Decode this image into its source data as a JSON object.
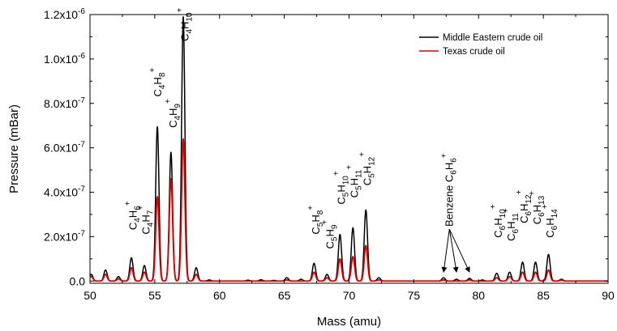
{
  "chart_data": {
    "type": "line",
    "xlabel": "Mass (amu)",
    "ylabel": "Pressure (mBar)",
    "xlim": [
      50,
      90
    ],
    "ylim": [
      -1e-08,
      1.2e-06
    ],
    "x_ticks": [
      50,
      55,
      60,
      65,
      70,
      75,
      80,
      85,
      90
    ],
    "x_tick_labels": [
      "50",
      "55",
      "60",
      "65",
      "70",
      "75",
      "80",
      "85",
      "90"
    ],
    "y_ticks": [
      0,
      2e-07,
      4e-07,
      6e-07,
      8e-07,
      1e-06,
      1.2e-06
    ],
    "y_tick_labels": [
      "0.0",
      "2.0x10",
      "4.0x10",
      "6.0x10",
      "8.0x10",
      "1.0x10",
      "1.2x10"
    ],
    "y_tick_exponents": [
      "",
      "-7",
      "-7",
      "-7",
      "-7",
      "-6",
      "-6"
    ],
    "grid": false,
    "legend_position": "top-right",
    "peak_width_amu": 0.18,
    "series": [
      {
        "name": "Middle Eastern crude oil",
        "color": "#000000",
        "peaks": [
          {
            "x": 50.1,
            "y": 3e-08
          },
          {
            "x": 51.2,
            "y": 5e-08
          },
          {
            "x": 52.2,
            "y": 2e-08
          },
          {
            "x": 53.2,
            "y": 1.05e-07
          },
          {
            "x": 54.2,
            "y": 7e-08
          },
          {
            "x": 55.2,
            "y": 6.95e-07
          },
          {
            "x": 56.25,
            "y": 5.8e-07
          },
          {
            "x": 57.2,
            "y": 1.19e-06
          },
          {
            "x": 58.2,
            "y": 6e-08
          },
          {
            "x": 59.2,
            "y": 5e-09
          },
          {
            "x": 62.2,
            "y": 4e-09
          },
          {
            "x": 63.2,
            "y": 6e-09
          },
          {
            "x": 64.2,
            "y": 3e-09
          },
          {
            "x": 65.2,
            "y": 1.5e-08
          },
          {
            "x": 66.3,
            "y": 8e-09
          },
          {
            "x": 67.3,
            "y": 8e-08
          },
          {
            "x": 68.3,
            "y": 3e-08
          },
          {
            "x": 69.3,
            "y": 2.1e-07
          },
          {
            "x": 70.3,
            "y": 2.4e-07
          },
          {
            "x": 71.3,
            "y": 3.2e-07
          },
          {
            "x": 72.3,
            "y": 1.5e-08
          },
          {
            "x": 77.3,
            "y": 1.5e-08
          },
          {
            "x": 78.3,
            "y": 8e-09
          },
          {
            "x": 79.3,
            "y": 1.2e-08
          },
          {
            "x": 80.3,
            "y": 5e-09
          },
          {
            "x": 81.4,
            "y": 3.5e-08
          },
          {
            "x": 82.4,
            "y": 4e-08
          },
          {
            "x": 83.4,
            "y": 8.5e-08
          },
          {
            "x": 84.4,
            "y": 8.5e-08
          },
          {
            "x": 85.4,
            "y": 1.2e-07
          },
          {
            "x": 86.4,
            "y": 8e-09
          }
        ]
      },
      {
        "name": "Texas crude oil",
        "color": "#e00000",
        "peaks": [
          {
            "x": 50.1,
            "y": 2e-08
          },
          {
            "x": 51.2,
            "y": 3e-08
          },
          {
            "x": 52.2,
            "y": 1e-08
          },
          {
            "x": 53.2,
            "y": 6e-08
          },
          {
            "x": 54.2,
            "y": 4e-08
          },
          {
            "x": 55.2,
            "y": 3.8e-07
          },
          {
            "x": 56.25,
            "y": 4.6e-07
          },
          {
            "x": 57.2,
            "y": 6.4e-07
          },
          {
            "x": 58.2,
            "y": 3e-08
          },
          {
            "x": 65.2,
            "y": 5e-09
          },
          {
            "x": 67.3,
            "y": 4e-08
          },
          {
            "x": 68.3,
            "y": 1.5e-08
          },
          {
            "x": 69.3,
            "y": 1e-07
          },
          {
            "x": 70.3,
            "y": 1.1e-07
          },
          {
            "x": 71.3,
            "y": 1.6e-07
          },
          {
            "x": 72.3,
            "y": 5e-09
          },
          {
            "x": 77.3,
            "y": 5e-09
          },
          {
            "x": 79.3,
            "y": 5e-09
          },
          {
            "x": 81.4,
            "y": 1.5e-08
          },
          {
            "x": 82.4,
            "y": 2e-08
          },
          {
            "x": 83.4,
            "y": 4e-08
          },
          {
            "x": 84.4,
            "y": 4e-08
          },
          {
            "x": 85.4,
            "y": 5e-08
          },
          {
            "x": 86.4,
            "y": 4e-09
          }
        ]
      }
    ],
    "annotations": [
      {
        "base": "C",
        "sub_a": "4",
        "mid": "H",
        "sub_b": "6",
        "sup": "+",
        "x": 53.6,
        "y": 2.3e-07
      },
      {
        "base": "C",
        "sub_a": "4",
        "mid": "H",
        "sub_b": "7",
        "sup": "+",
        "x": 54.6,
        "y": 2.1e-07
      },
      {
        "base": "C",
        "sub_a": "4",
        "mid": "H",
        "sub_b": "8",
        "sup": "+",
        "x": 55.5,
        "y": 8.3e-07
      },
      {
        "base": "C",
        "sub_a": "4",
        "mid": "H",
        "sub_b": "9",
        "sup": "+",
        "x": 56.7,
        "y": 6.9e-07
      },
      {
        "base": "C",
        "sub_a": "4",
        "mid": "H",
        "sub_b": "10",
        "sup": "+",
        "x": 57.6,
        "y": 1.08e-06
      },
      {
        "base": "C",
        "sub_a": "5",
        "mid": "H",
        "sub_b": "8",
        "sup": "+",
        "x": 67.7,
        "y": 2.1e-07
      },
      {
        "base": "C",
        "sub_a": "5",
        "mid": "H",
        "sub_b": "9",
        "sup": "+",
        "x": 68.8,
        "y": 1.45e-07
      },
      {
        "base": "C",
        "sub_a": "5",
        "mid": "H",
        "sub_b": "10",
        "sup": "+",
        "x": 69.7,
        "y": 3.45e-07
      },
      {
        "base": "C",
        "sub_a": "5",
        "mid": "H",
        "sub_b": "11",
        "sup": "+",
        "x": 70.7,
        "y": 3.75e-07
      },
      {
        "base": "C",
        "sub_a": "5",
        "mid": "H",
        "sub_b": "12",
        "sup": "+",
        "x": 71.7,
        "y": 4.3e-07
      },
      {
        "base": "C",
        "sub_a": "6",
        "mid": "H",
        "sub_b": "10",
        "sup": "+",
        "x": 81.8,
        "y": 1.95e-07
      },
      {
        "base": "C",
        "sub_a": "6",
        "mid": "H",
        "sub_b": "11",
        "sup": "+",
        "x": 82.8,
        "y": 1.8e-07
      },
      {
        "base": "C",
        "sub_a": "6",
        "mid": "H",
        "sub_b": "12",
        "sup": "+",
        "x": 83.8,
        "y": 2.6e-07
      },
      {
        "base": "C",
        "sub_a": "6",
        "mid": "H",
        "sub_b": "13",
        "sup": "+",
        "x": 84.8,
        "y": 2.55e-07
      },
      {
        "base": "C",
        "sub_a": "6",
        "mid": "H",
        "sub_b": "14",
        "sup": "+",
        "x": 85.8,
        "y": 1.95e-07
      }
    ],
    "benzene": {
      "text": "Benzene C",
      "sub_a": "6",
      "mid": "H",
      "sub_b": "6",
      "sup": "+",
      "x": 78.0,
      "y": 2.45e-07,
      "arrow_targets": [
        {
          "x": 77.3,
          "y": 4e-08
        },
        {
          "x": 78.3,
          "y": 4e-08
        },
        {
          "x": 79.3,
          "y": 4e-08
        }
      ]
    }
  }
}
